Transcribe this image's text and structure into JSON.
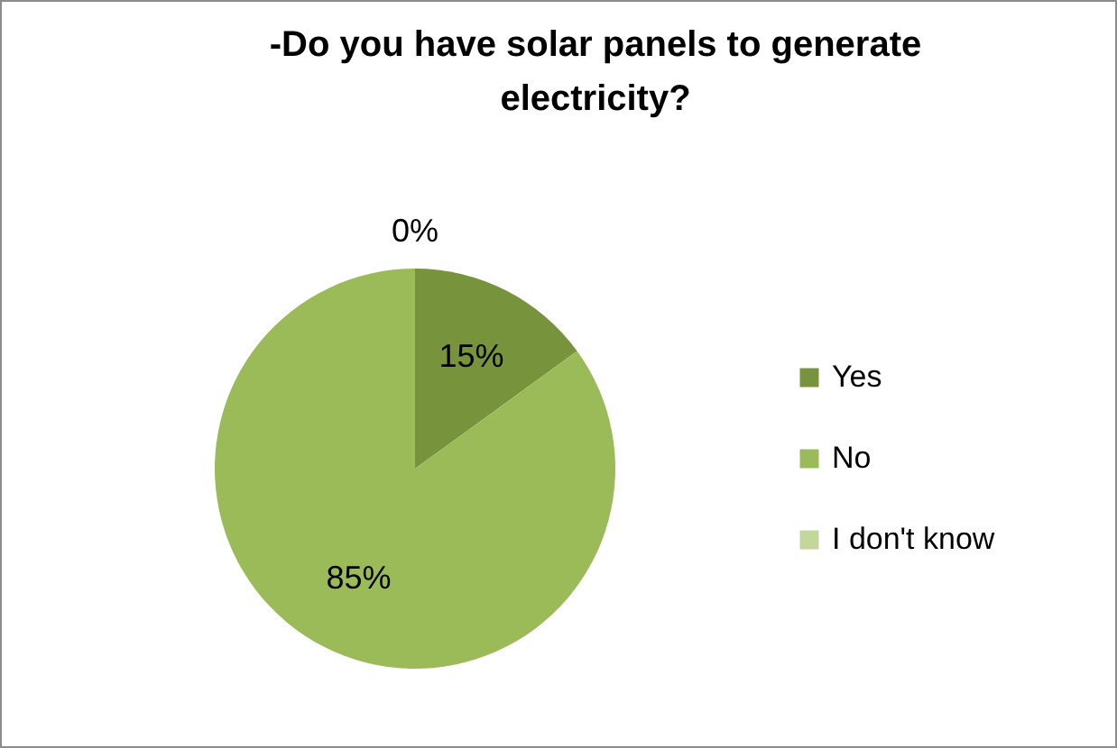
{
  "chart_data": {
    "type": "pie",
    "title": "-Do you have solar panels to generate electricity?",
    "categories": [
      "Yes",
      "No",
      "I don't know"
    ],
    "values": [
      15,
      85,
      0
    ],
    "value_labels": [
      "15%",
      "85%",
      "0%"
    ],
    "colors": [
      "#77933c",
      "#9bbb59",
      "#c3d69b"
    ],
    "legend": "right"
  }
}
